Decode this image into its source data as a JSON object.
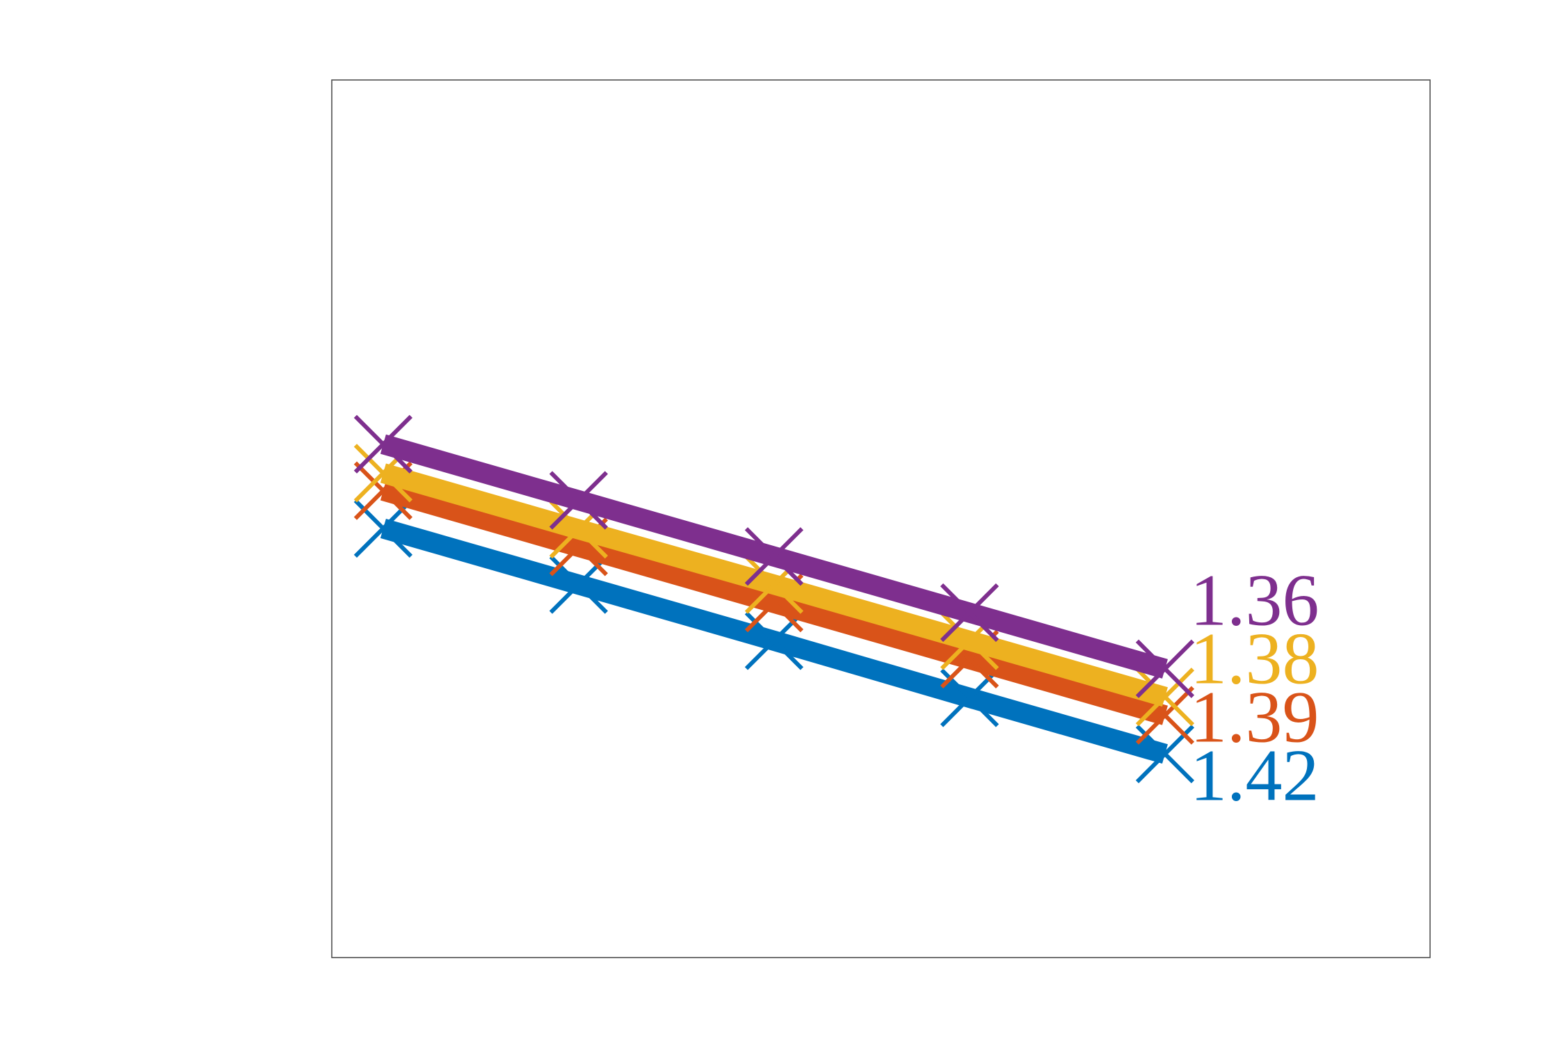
{
  "chart_data": {
    "type": "line",
    "x": [
      1,
      2,
      3,
      4,
      5
    ],
    "xlim": [
      0.737,
      6.356
    ],
    "ylim": [
      0,
      1
    ],
    "series": [
      {
        "color": "#0072bd",
        "values": [
          0.489,
          0.425,
          0.361,
          0.296,
          0.232
        ],
        "annotation": "1.42"
      },
      {
        "color": "#d95319",
        "values": [
          0.532,
          0.468,
          0.404,
          0.34,
          0.276
        ],
        "annotation": "1.39"
      },
      {
        "color": "#edb120",
        "values": [
          0.552,
          0.488,
          0.425,
          0.361,
          0.297
        ],
        "annotation": "1.38"
      },
      {
        "color": "#7e2f8e",
        "values": [
          0.585,
          0.521,
          0.457,
          0.393,
          0.329
        ],
        "annotation": "1.36"
      }
    ]
  }
}
